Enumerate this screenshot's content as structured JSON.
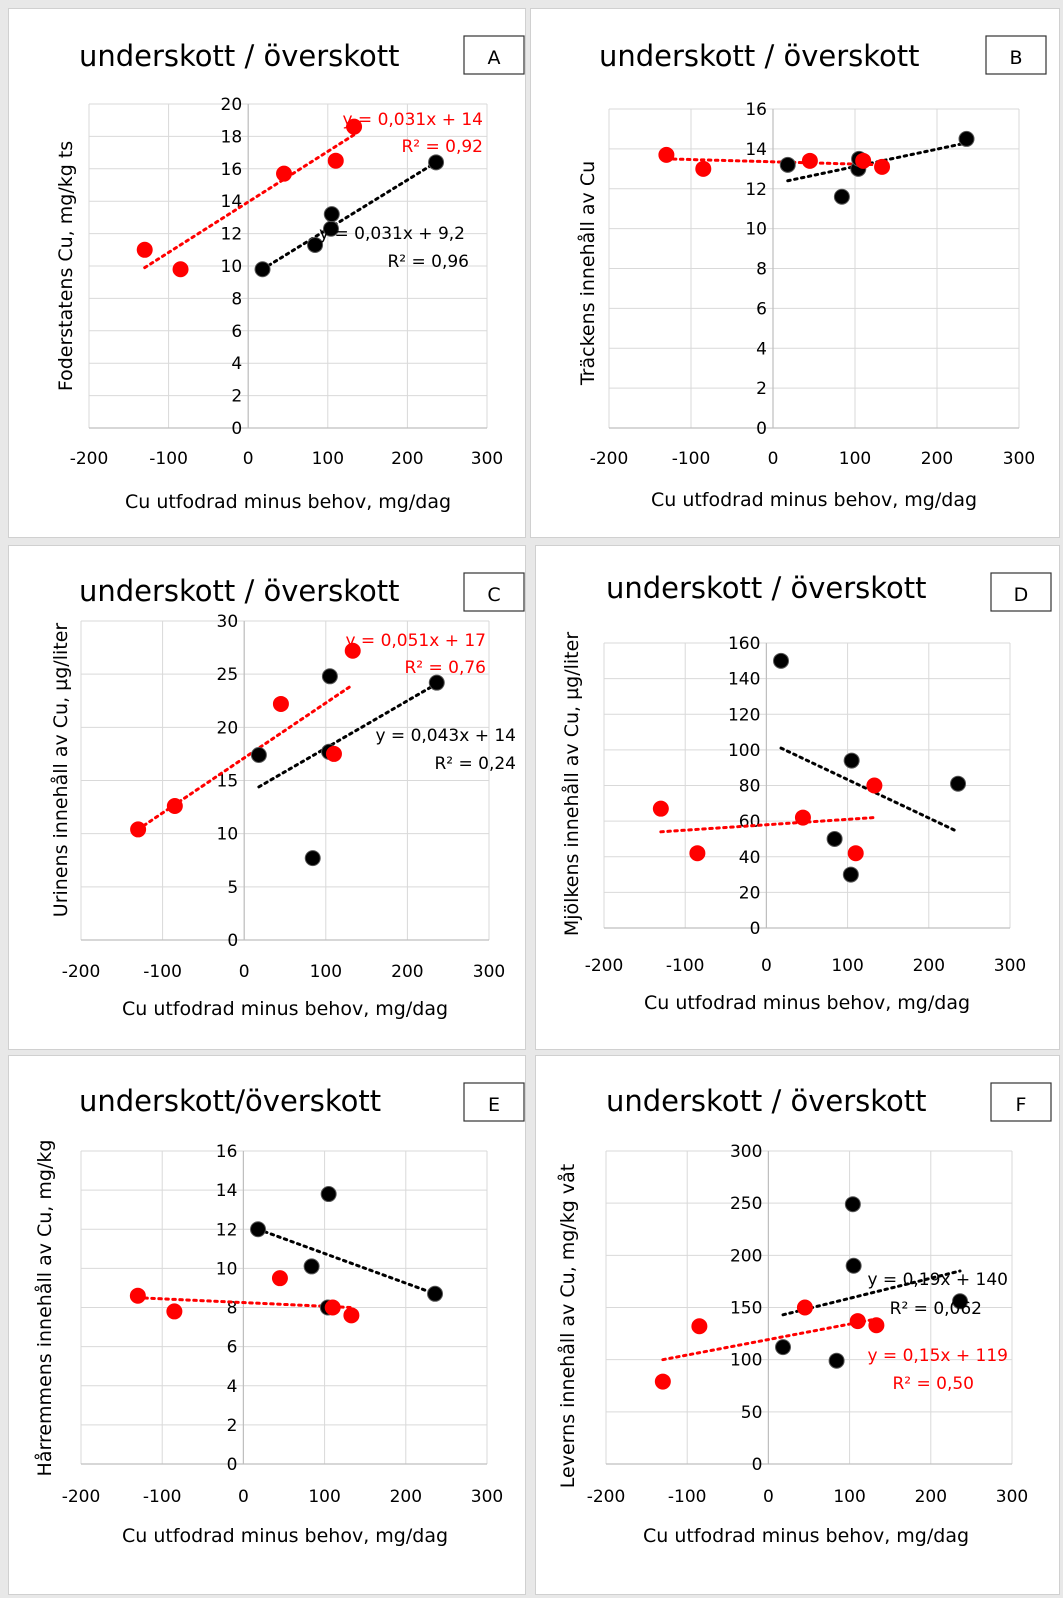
{
  "chart_data": [
    {
      "type": "scatter",
      "panel_letter": "A",
      "title": "underskott / överskott",
      "xlabel": "Cu utfodrad minus behov, mg/dag",
      "ylabel": "Foderstatens Cu, mg/kg ts",
      "xlim": [
        -200,
        300
      ],
      "ylim": [
        0,
        20
      ],
      "xticks": [
        "-200",
        "-100",
        "0",
        "100",
        "200",
        "300"
      ],
      "yticks": [
        "0",
        "2",
        "4",
        "6",
        "8",
        "10",
        "12",
        "14",
        "16",
        "18",
        "20"
      ],
      "grid": true,
      "series": [
        {
          "color": "#000000",
          "x": [
            18,
            84,
            104,
            105,
            236
          ],
          "y": [
            9.8,
            11.3,
            12.3,
            13.2,
            16.4
          ],
          "equation": "y = 0,031x + 9,2",
          "r2": "R² = 0,96",
          "trend": [
            [
              18,
              9.8
            ],
            [
              236,
              16.4
            ]
          ]
        },
        {
          "color": "#ff0000",
          "x": [
            -130,
            -85,
            45,
            110,
            133
          ],
          "y": [
            11.0,
            9.8,
            15.7,
            16.5,
            18.6
          ],
          "equation": "y = 0,031x + 14",
          "r2": "R² = 0,92",
          "trend": [
            [
              -130,
              9.9
            ],
            [
              133,
              18.1
            ]
          ]
        }
      ]
    },
    {
      "type": "scatter",
      "panel_letter": "B",
      "title": "underskott / överskott",
      "xlabel": "Cu utfodrad minus behov, mg/dag",
      "ylabel": "Träckens innehåll av Cu",
      "xlim": [
        -200,
        300
      ],
      "ylim": [
        0,
        16
      ],
      "xticks": [
        "-200",
        "-100",
        "0",
        "100",
        "200",
        "300"
      ],
      "yticks": [
        "0",
        "2",
        "4",
        "6",
        "8",
        "10",
        "12",
        "14",
        "16"
      ],
      "grid": true,
      "series": [
        {
          "color": "#000000",
          "x": [
            18,
            84,
            104,
            105,
            236
          ],
          "y": [
            13.2,
            11.6,
            13.0,
            13.5,
            14.5
          ],
          "equation": "",
          "r2": "",
          "trend": [
            [
              18,
              12.4
            ],
            [
              236,
              14.3
            ]
          ]
        },
        {
          "color": "#ff0000",
          "x": [
            -130,
            -85,
            45,
            110,
            133
          ],
          "y": [
            13.7,
            13.0,
            13.4,
            13.4,
            13.1
          ],
          "equation": "",
          "r2": "",
          "trend": [
            [
              -130,
              13.5
            ],
            [
              133,
              13.2
            ]
          ]
        }
      ]
    },
    {
      "type": "scatter",
      "panel_letter": "C",
      "title": "underskott / överskott",
      "xlabel": "Cu utfodrad minus behov, mg/dag",
      "ylabel": "Urinens innehåll av Cu, µg/liter",
      "xlim": [
        -200,
        300
      ],
      "ylim": [
        0,
        30
      ],
      "xticks": [
        "-200",
        "-100",
        "0",
        "100",
        "200",
        "300"
      ],
      "yticks": [
        "0",
        "5",
        "10",
        "15",
        "20",
        "25",
        "30"
      ],
      "grid": true,
      "series": [
        {
          "color": "#000000",
          "x": [
            18,
            84,
            104,
            105,
            236
          ],
          "y": [
            17.4,
            7.7,
            17.7,
            24.8,
            24.2
          ],
          "equation": "y = 0,043x + 14",
          "r2": "R² = 0,24",
          "trend": [
            [
              18,
              14.4
            ],
            [
              236,
              24.1
            ]
          ]
        },
        {
          "color": "#ff0000",
          "x": [
            -130,
            -85,
            45,
            110,
            133
          ],
          "y": [
            10.4,
            12.6,
            22.2,
            17.5,
            27.2
          ],
          "equation": "y = 0,051x + 17",
          "r2": "R² = 0,76",
          "trend": [
            [
              -130,
              10.4
            ],
            [
              133,
              24.0
            ]
          ]
        }
      ]
    },
    {
      "type": "scatter",
      "panel_letter": "D",
      "title": "underskott / överskott",
      "xlabel": "Cu utfodrad minus behov, mg/dag",
      "ylabel": "Mjölkens innehåll av Cu, µg/liter",
      "xlim": [
        -200,
        300
      ],
      "ylim": [
        0,
        160
      ],
      "xticks": [
        "-200",
        "-100",
        "0",
        "100",
        "200",
        "300"
      ],
      "yticks": [
        "0",
        "20",
        "40",
        "60",
        "80",
        "100",
        "120",
        "140",
        "160"
      ],
      "grid": true,
      "series": [
        {
          "color": "#000000",
          "x": [
            18,
            84,
            104,
            105,
            236
          ],
          "y": [
            150,
            50,
            30,
            94,
            81
          ],
          "equation": "",
          "r2": "",
          "trend": [
            [
              18,
              101
            ],
            [
              236,
              54
            ]
          ]
        },
        {
          "color": "#ff0000",
          "x": [
            -130,
            -85,
            45,
            110,
            133
          ],
          "y": [
            67,
            42,
            62,
            42,
            80
          ],
          "equation": "",
          "r2": "",
          "trend": [
            [
              -130,
              54
            ],
            [
              133,
              62
            ]
          ]
        }
      ]
    },
    {
      "type": "scatter",
      "panel_letter": "E",
      "title": "underskott/överskott",
      "xlabel": "Cu utfodrad minus behov, mg/dag",
      "ylabel": "Hårremmens innehåll av Cu, mg/kg",
      "xlim": [
        -200,
        300
      ],
      "ylim": [
        0,
        16
      ],
      "xticks": [
        "-200",
        "-100",
        "0",
        "100",
        "200",
        "300"
      ],
      "yticks": [
        "0",
        "2",
        "4",
        "6",
        "8",
        "10",
        "12",
        "14",
        "16"
      ],
      "grid": true,
      "series": [
        {
          "color": "#000000",
          "x": [
            18,
            84,
            104,
            105,
            236
          ],
          "y": [
            12.0,
            10.1,
            8.0,
            13.8,
            8.7
          ],
          "equation": "",
          "r2": "",
          "trend": [
            [
              18,
              12.0
            ],
            [
              236,
              8.7
            ]
          ]
        },
        {
          "color": "#ff0000",
          "x": [
            -130,
            -85,
            45,
            110,
            133
          ],
          "y": [
            8.6,
            7.8,
            9.5,
            8.0,
            7.6
          ],
          "equation": "",
          "r2": "",
          "trend": [
            [
              -130,
              8.5
            ],
            [
              133,
              8.0
            ]
          ]
        }
      ]
    },
    {
      "type": "scatter",
      "panel_letter": "F",
      "title": "underskott / överskott",
      "xlabel": "Cu utfodrad minus behov, mg/dag",
      "ylabel": "Leverns innehåll av Cu, mg/kg våt",
      "xlim": [
        -200,
        300
      ],
      "ylim": [
        0,
        300
      ],
      "xticks": [
        "-200",
        "-100",
        "0",
        "100",
        "200",
        "300"
      ],
      "yticks": [
        "0",
        "50",
        "100",
        "150",
        "200",
        "250",
        "300"
      ],
      "grid": true,
      "series": [
        {
          "color": "#000000",
          "x": [
            18,
            84,
            104,
            105,
            236
          ],
          "y": [
            112,
            99,
            249,
            190,
            156
          ],
          "equation": "y = 0,19x + 140",
          "r2": "R² = 0,062",
          "trend": [
            [
              18,
              143
            ],
            [
              236,
              185
            ]
          ]
        },
        {
          "color": "#ff0000",
          "x": [
            -130,
            -85,
            45,
            110,
            133
          ],
          "y": [
            79,
            132,
            150,
            137,
            133
          ],
          "equation": "y = 0,15x + 119",
          "r2": "R² = 0,50",
          "trend": [
            [
              -130,
              100
            ],
            [
              133,
              139
            ]
          ]
        }
      ]
    }
  ]
}
